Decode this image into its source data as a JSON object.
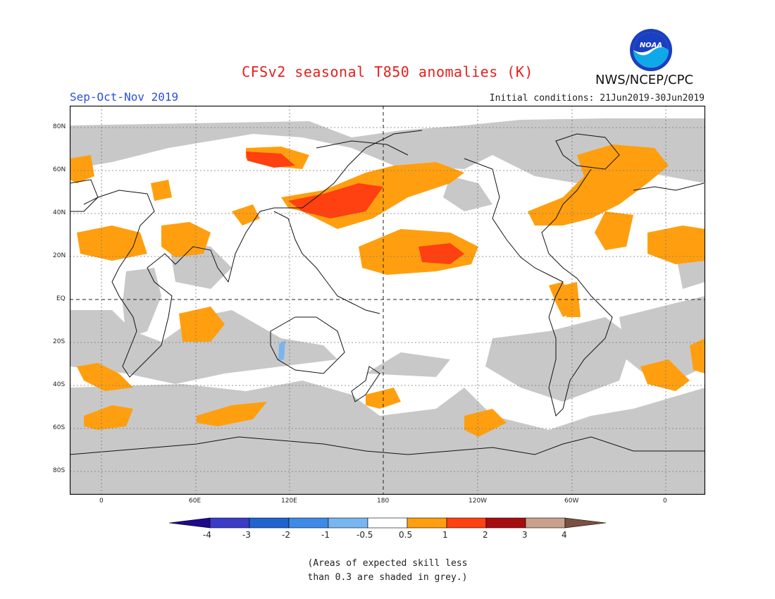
{
  "title": "CFSv2 seasonal T850 anomalies (K)",
  "season": "Sep-Oct-Nov 2019",
  "initial_conditions": "Initial conditions: 21Jun2019-30Jun2019",
  "agency": "NWS/NCEP/CPC",
  "logo_text": "NOAA",
  "lat_labels": [
    "80N",
    "60N",
    "40N",
    "20N",
    "EQ",
    "20S",
    "40S",
    "60S",
    "80S"
  ],
  "lon_labels": [
    "0",
    "60E",
    "120E",
    "180",
    "120W",
    "60W",
    "0"
  ],
  "colorbar": {
    "labels": [
      "-4",
      "-3",
      "-2",
      "-1",
      "-0.5",
      "0.5",
      "1",
      "2",
      "3",
      "4"
    ],
    "colors": [
      "#1e0a8c",
      "#3b3bc8",
      "#1f63d0",
      "#3e8ae6",
      "#79b6f0",
      "#ffffff",
      "#ff9f0f",
      "#ff4010",
      "#a80c10",
      "#c8a08c",
      "#7a5040"
    ]
  },
  "colors": {
    "grey_low_skill": "#c8c8c8",
    "orange": "#ff9f0f",
    "red_orange": "#ff4010",
    "light_blue": "#79b6f0"
  },
  "note_line1": "(Areas of expected skill less",
  "note_line2": "than 0.3 are shaded in grey.)"
}
